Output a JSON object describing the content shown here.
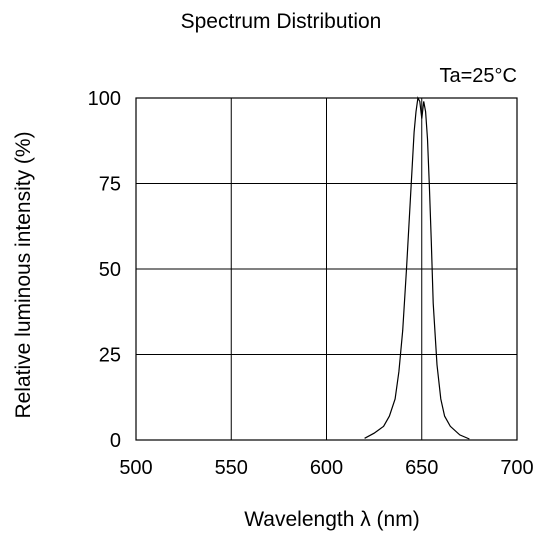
{
  "chart_data": {
    "type": "line",
    "title": "Spectrum Distribution",
    "annotation": "Ta=25°C",
    "xlabel": "Wavelength λ (nm)",
    "ylabel": "Relative luminous intensity (%)",
    "xlim": [
      500,
      700
    ],
    "ylim": [
      0,
      100
    ],
    "xticks": [
      "500",
      "550",
      "600",
      "650",
      "700"
    ],
    "yticks": [
      "0",
      "25",
      "50",
      "75",
      "100"
    ],
    "grid": true,
    "series": [
      {
        "x": [
          620,
          625,
          630,
          633,
          636,
          638,
          640,
          642,
          644,
          645,
          646,
          647,
          648,
          649,
          650,
          651,
          652,
          653,
          654,
          655,
          656,
          658,
          660,
          662,
          665,
          670,
          675
        ],
        "y": [
          0.5,
          2,
          4,
          7,
          12,
          20,
          32,
          50,
          70,
          80,
          90,
          96,
          100,
          99,
          94,
          99,
          96,
          88,
          74,
          58,
          40,
          22,
          12,
          7,
          4,
          1.5,
          0.3
        ]
      }
    ],
    "colors": {
      "line": "#000000",
      "grid": "#000000"
    }
  }
}
